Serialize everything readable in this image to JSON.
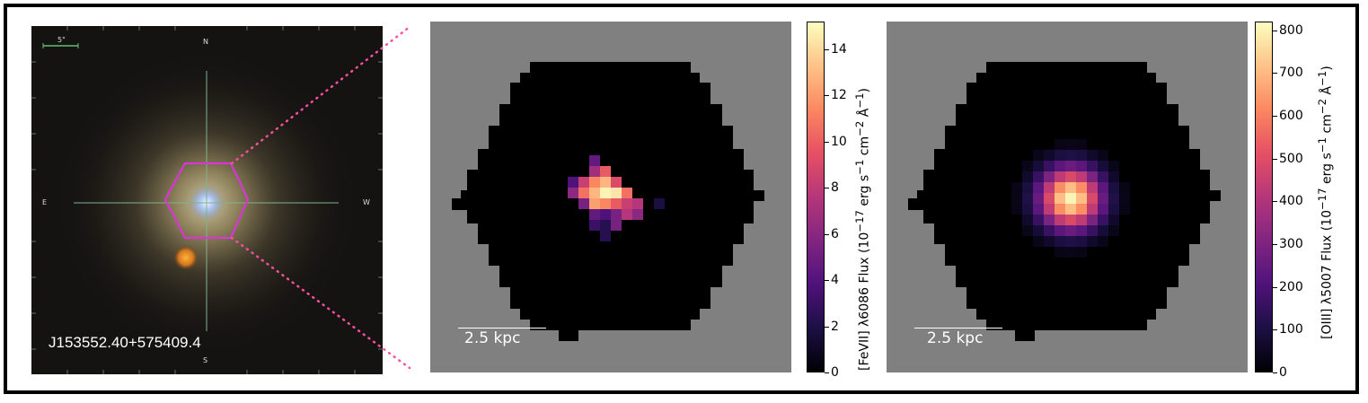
{
  "sdss_image": {
    "object_name": "J153552.40+575409.4",
    "scale_label": "5\"",
    "compass": {
      "north": "N",
      "south": "S",
      "east": "E",
      "west": "W"
    }
  },
  "panels": [
    {
      "id": "fevii",
      "scalebar_label": "2.5 kpc",
      "colorbar": {
        "label_html": "[FeVII] &lambda;6086 Flux (10<sup>&minus;17</sup> erg s<sup>&minus;1</sup> cm<sup>&minus;2</sup> &Aring;<sup>&minus;1</sup>)",
        "ticks": [
          "0",
          "2",
          "4",
          "6",
          "8",
          "10",
          "12",
          "14"
        ],
        "vmax": 15.2
      }
    },
    {
      "id": "oiii",
      "scalebar_label": "2.5 kpc",
      "colorbar": {
        "label_html": "[OIII] &lambda;5007 Flux (10<sup>&minus;17</sup> erg s<sup>&minus;1</sup> cm<sup>&minus;2</sup> &Aring;<sup>&minus;1</sup>)",
        "ticks": [
          "0",
          "100",
          "200",
          "300",
          "400",
          "500",
          "600",
          "700",
          "800"
        ],
        "vmax": 820
      }
    }
  ],
  "colors": {
    "hexagon": "#e030e0",
    "connector": "#ff4fa0",
    "background_gray": "#808080"
  }
}
